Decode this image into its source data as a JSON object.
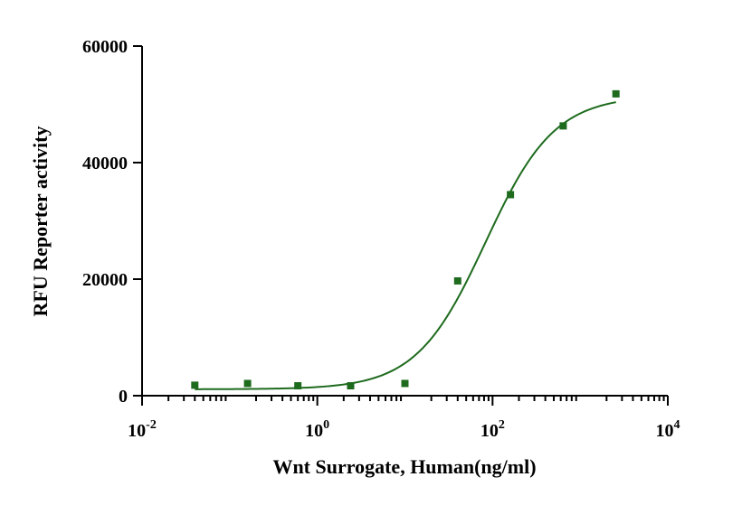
{
  "chart_data": {
    "type": "scatter",
    "xlabel": "Wnt Surrogate, Human(ng/ml)",
    "ylabel": "RFU Reporter activity",
    "x_scale": "log",
    "xlim": [
      0.01,
      10000
    ],
    "ylim": [
      0,
      60000
    ],
    "x_ticks": [
      {
        "value": 0.01,
        "base": "10",
        "exp": "-2"
      },
      {
        "value": 1,
        "base": "10",
        "exp": "0"
      },
      {
        "value": 100,
        "base": "10",
        "exp": "2"
      },
      {
        "value": 10000,
        "base": "10",
        "exp": "4"
      }
    ],
    "y_ticks": [
      {
        "value": 0,
        "label": "0"
      },
      {
        "value": 20000,
        "label": "20000"
      },
      {
        "value": 40000,
        "label": "40000"
      },
      {
        "value": 60000,
        "label": "60000"
      }
    ],
    "grid": false,
    "series": [
      {
        "x": [
          0.04,
          0.16,
          0.6,
          2.4,
          10,
          40,
          160,
          640,
          2560
        ],
        "y": [
          1800,
          2100,
          1700,
          1700,
          2100,
          19700,
          34500,
          46300,
          51800
        ]
      }
    ],
    "fit_curve": {
      "model": "4PL",
      "bottom": 1100,
      "top": 51500,
      "ec50": 83,
      "hill": 1.1,
      "x_range": [
        0.04,
        2560
      ]
    },
    "color": "#1e6b1e"
  }
}
